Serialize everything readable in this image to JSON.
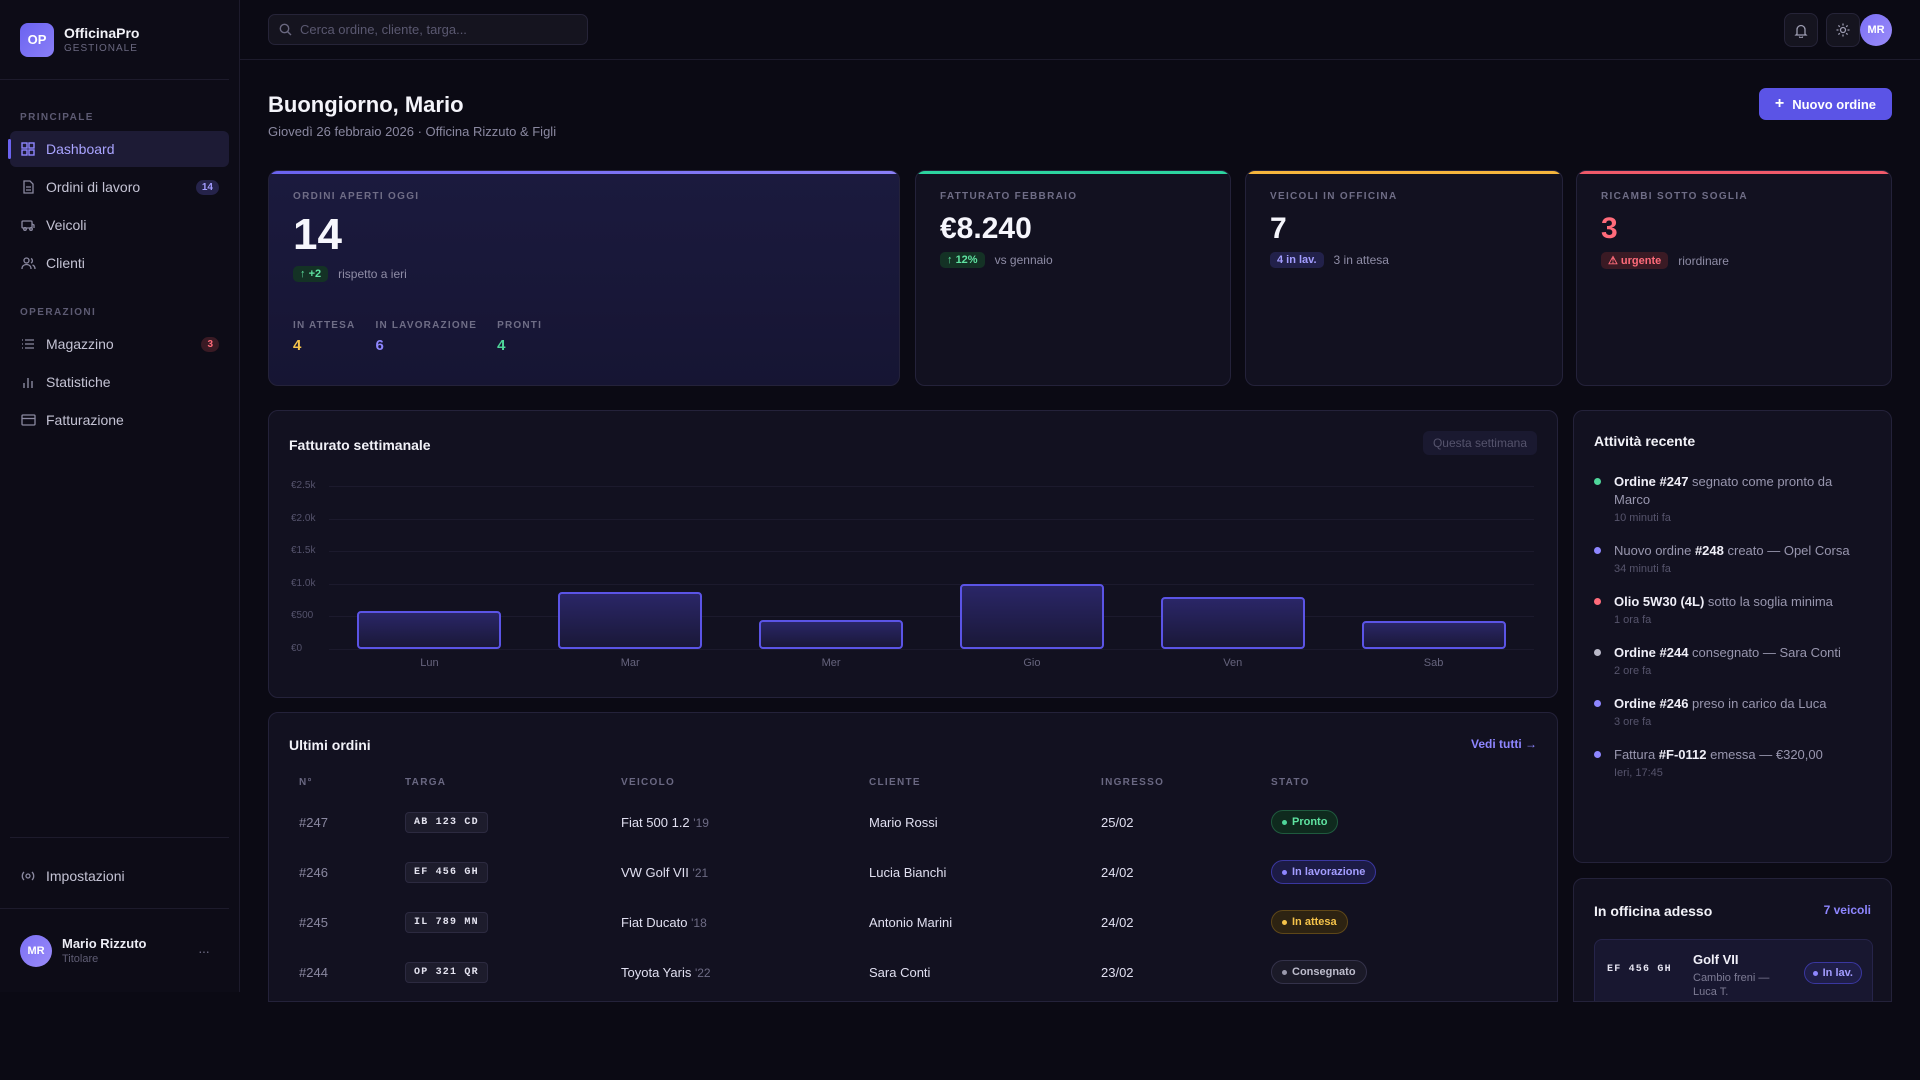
{
  "brand": {
    "initials": "OP",
    "name": "OfficinaPro",
    "subtitle": "GESTIONALE"
  },
  "sidebar": {
    "section_main": "PRINCIPALE",
    "items_main": [
      {
        "label": "Dashboard",
        "icon": "grid-icon",
        "active": true
      },
      {
        "label": "Ordini di lavoro",
        "icon": "document-icon",
        "badge": "14"
      },
      {
        "label": "Veicoli",
        "icon": "car-icon"
      },
      {
        "label": "Clienti",
        "icon": "users-icon"
      }
    ],
    "section_ops": "OPERAZIONI",
    "items_ops": [
      {
        "label": "Magazzino",
        "icon": "list-icon",
        "badge": "3"
      },
      {
        "label": "Statistiche",
        "icon": "bar-chart-icon"
      },
      {
        "label": "Fatturazione",
        "icon": "card-icon"
      }
    ],
    "settings_label": "Impostazioni",
    "user": {
      "initials": "MR",
      "name": "Mario Rizzuto",
      "role": "Titolare",
      "menu": "···"
    }
  },
  "topbar": {
    "search_placeholder": "Cerca ordine, cliente, targa...",
    "avatar": "MR"
  },
  "header": {
    "greeting": "Buongiorno, Mario",
    "subtitle": "Giovedì 26 febbraio 2026 · Officina Rizzuto & Figli",
    "new_button": "Nuovo ordine"
  },
  "kpis": {
    "orders": {
      "label": "ORDINI APERTI OGGI",
      "value": "14",
      "delta": "+2",
      "delta_text": "rispetto a ieri",
      "sub": [
        {
          "label": "IN ATTESA",
          "value": "4",
          "color": "#f5c34a"
        },
        {
          "label": "IN LAVORAZIONE",
          "value": "6",
          "color": "#8e86ff"
        },
        {
          "label": "PRONTI",
          "value": "4",
          "color": "#4fd69a"
        }
      ]
    },
    "revenue": {
      "label": "FATTURATO FEBBRAIO",
      "value": "€8.240",
      "delta": "12%",
      "delta_text": "vs gennaio"
    },
    "vehicles": {
      "label": "VEICOLI IN OFFICINA",
      "value": "7",
      "pill": "4 in lav.",
      "text": "3 in attesa"
    },
    "parts": {
      "label": "RICAMBI SOTTO SOGLIA",
      "value": "3",
      "pill": "urgente",
      "text": "riordinare"
    }
  },
  "chart": {
    "title": "Fatturato settimanale",
    "range_chip": "Questa settimana"
  },
  "chart_data": {
    "type": "bar",
    "categories": [
      "Lun",
      "Mar",
      "Mer",
      "Gio",
      "Ven",
      "Sab"
    ],
    "values": [
      580,
      880,
      450,
      1000,
      800,
      430
    ],
    "yticks": [
      "€0",
      "€500",
      "€1.0k",
      "€1.5k",
      "€2.0k",
      "€2.5k"
    ],
    "ylim": [
      0,
      2500
    ],
    "grid": true
  },
  "orders_table": {
    "title": "Ultimi ordini",
    "link": "Vedi tutti →",
    "columns": [
      "N°",
      "TARGA",
      "VEICOLO",
      "CLIENTE",
      "INGRESSO",
      "STATO"
    ],
    "rows": [
      {
        "num": "#247",
        "plate": "AB 123 CD",
        "vehicle": "Fiat 500 1.2",
        "year": "'19",
        "client": "Mario Rossi",
        "date": "25/02",
        "status": "Pronto",
        "status_key": "green"
      },
      {
        "num": "#246",
        "plate": "EF 456 GH",
        "vehicle": "VW Golf VII",
        "year": "'21",
        "client": "Lucia Bianchi",
        "date": "24/02",
        "status": "In lavorazione",
        "status_key": "blue"
      },
      {
        "num": "#245",
        "plate": "IL 789 MN",
        "vehicle": "Fiat Ducato",
        "year": "'18",
        "client": "Antonio Marini",
        "date": "24/02",
        "status": "In attesa",
        "status_key": "amber"
      },
      {
        "num": "#244",
        "plate": "OP 321 QR",
        "vehicle": "Toyota Yaris",
        "year": "'22",
        "client": "Sara Conti",
        "date": "23/02",
        "status": "Consegnato",
        "status_key": "gray"
      }
    ]
  },
  "activity": {
    "title": "Attività recente",
    "items": [
      {
        "color": "#4fd69a",
        "bold": "Ordine #247",
        "pre": "",
        "text": " segnato come pronto da Marco",
        "time": "10 minuti fa"
      },
      {
        "color": "#8e86ff",
        "pre": "Nuovo ordine ",
        "bold": "#248",
        "text": " creato — Opel Corsa",
        "time": "34 minuti fa"
      },
      {
        "color": "#ff6b7a",
        "pre": "",
        "bold": "Olio 5W30 (4L)",
        "text": " sotto la soglia minima",
        "time": "1 ora fa"
      },
      {
        "color": "#b9b8c8",
        "pre": "",
        "bold": "Ordine #244",
        "text": " consegnato — Sara Conti",
        "time": "2 ore fa"
      },
      {
        "color": "#8e86ff",
        "pre": "",
        "bold": "Ordine #246",
        "text": " preso in carico da Luca",
        "time": "3 ore fa"
      },
      {
        "color": "#8e86ff",
        "pre": "Fattura ",
        "bold": "#F-0112",
        "text": " emessa — €320,00",
        "time": "Ieri, 17:45"
      }
    ]
  },
  "workshop": {
    "title": "In officina adesso",
    "link": "7 veicoli",
    "item": {
      "plate": "EF 456 GH",
      "model": "Golf VII",
      "desc": "Cambio freni —",
      "desc2": "Luca T.",
      "status": "In lav."
    }
  }
}
